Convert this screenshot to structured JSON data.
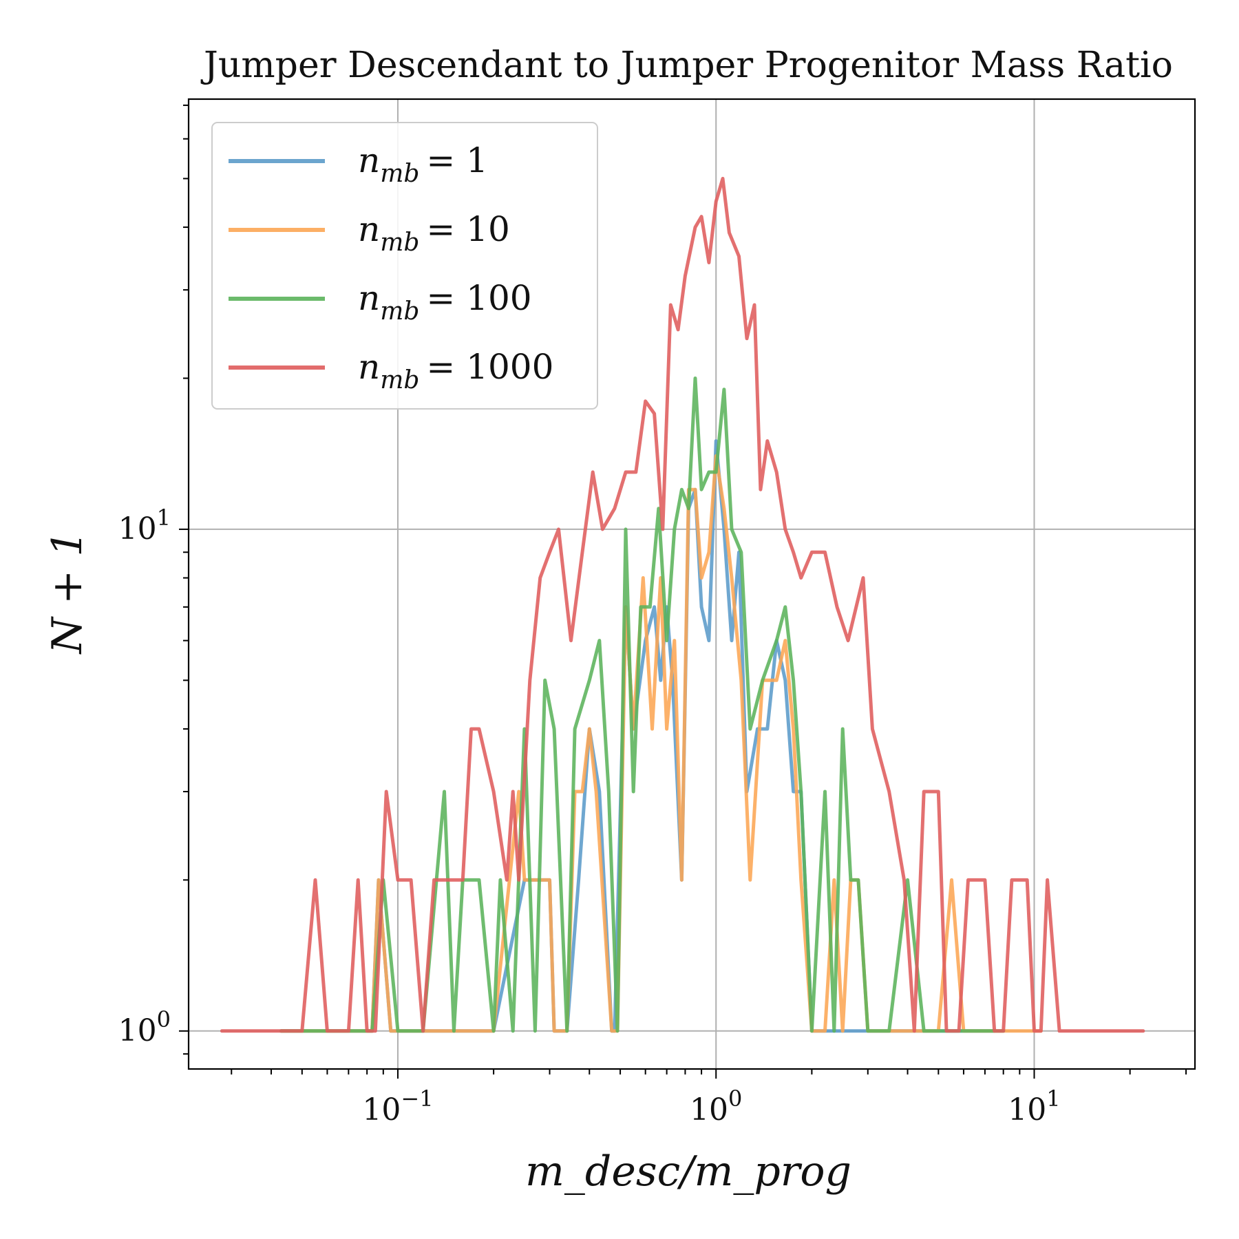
{
  "chart_data": {
    "type": "line",
    "title": "Jumper Descendant to Jumper Progenitor Mass Ratio",
    "xlabel": "m_desc/m_prog",
    "ylabel": "N + 1",
    "xscale": "log",
    "yscale": "log",
    "xlim": [
      0.022,
      32
    ],
    "ylim": [
      0.84,
      72
    ],
    "grid": true,
    "legend_position": "upper-left",
    "x_ticks": [
      {
        "value": 0.1,
        "base": "10",
        "exp": "−1"
      },
      {
        "value": 1,
        "base": "10",
        "exp": "0"
      },
      {
        "value": 10,
        "base": "10",
        "exp": "1"
      }
    ],
    "y_ticks": [
      {
        "value": 1,
        "base": "10",
        "exp": "0"
      },
      {
        "value": 10,
        "base": "10",
        "exp": "1"
      }
    ],
    "series": [
      {
        "name": "n_mb = 1",
        "label_main": "n",
        "label_sub": "mb",
        "label_value": "= 1",
        "color": "#5b9bc9",
        "points": [
          [
            0.043,
            1
          ],
          [
            0.055,
            1
          ],
          [
            0.07,
            1
          ],
          [
            0.083,
            1
          ],
          [
            0.087,
            2
          ],
          [
            0.095,
            1
          ],
          [
            0.12,
            1
          ],
          [
            0.14,
            1
          ],
          [
            0.15,
            1
          ],
          [
            0.16,
            1
          ],
          [
            0.2,
            1
          ],
          [
            0.25,
            2
          ],
          [
            0.3,
            2
          ],
          [
            0.31,
            1
          ],
          [
            0.34,
            1
          ],
          [
            0.37,
            2
          ],
          [
            0.4,
            4
          ],
          [
            0.43,
            3
          ],
          [
            0.47,
            1
          ],
          [
            0.48,
            1
          ],
          [
            0.52,
            7
          ],
          [
            0.55,
            4
          ],
          [
            0.6,
            6
          ],
          [
            0.64,
            7
          ],
          [
            0.67,
            5
          ],
          [
            0.7,
            7
          ],
          [
            0.73,
            5
          ],
          [
            0.78,
            2
          ],
          [
            0.82,
            11
          ],
          [
            0.86,
            12
          ],
          [
            0.9,
            7
          ],
          [
            0.95,
            6
          ],
          [
            1.0,
            15
          ],
          [
            1.06,
            10
          ],
          [
            1.12,
            6
          ],
          [
            1.18,
            9
          ],
          [
            1.25,
            3
          ],
          [
            1.35,
            4
          ],
          [
            1.45,
            4
          ],
          [
            1.55,
            6
          ],
          [
            1.65,
            5
          ],
          [
            1.75,
            3
          ],
          [
            1.85,
            3
          ],
          [
            2.0,
            1
          ],
          [
            2.2,
            1
          ],
          [
            2.5,
            1
          ],
          [
            2.8,
            1
          ],
          [
            3.2,
            1
          ],
          [
            4.0,
            1
          ],
          [
            5.0,
            1
          ],
          [
            6.0,
            1
          ],
          [
            7.5,
            1
          ]
        ]
      },
      {
        "name": "n_mb = 10",
        "label_main": "n",
        "label_sub": "mb",
        "label_value": "= 10",
        "color": "#fca654",
        "points": [
          [
            0.043,
            1
          ],
          [
            0.055,
            1
          ],
          [
            0.07,
            1
          ],
          [
            0.083,
            1
          ],
          [
            0.087,
            2
          ],
          [
            0.095,
            1
          ],
          [
            0.12,
            1
          ],
          [
            0.14,
            1
          ],
          [
            0.15,
            1
          ],
          [
            0.16,
            1
          ],
          [
            0.2,
            1
          ],
          [
            0.24,
            3
          ],
          [
            0.25,
            2
          ],
          [
            0.3,
            2
          ],
          [
            0.31,
            1
          ],
          [
            0.34,
            1
          ],
          [
            0.36,
            3
          ],
          [
            0.38,
            3
          ],
          [
            0.4,
            4
          ],
          [
            0.42,
            3
          ],
          [
            0.47,
            1
          ],
          [
            0.49,
            1
          ],
          [
            0.52,
            7
          ],
          [
            0.55,
            4
          ],
          [
            0.59,
            8
          ],
          [
            0.63,
            4
          ],
          [
            0.67,
            8
          ],
          [
            0.7,
            4
          ],
          [
            0.74,
            6
          ],
          [
            0.78,
            2
          ],
          [
            0.82,
            12
          ],
          [
            0.86,
            12
          ],
          [
            0.9,
            8
          ],
          [
            0.95,
            9
          ],
          [
            1.0,
            14
          ],
          [
            1.06,
            11
          ],
          [
            1.12,
            8
          ],
          [
            1.2,
            5
          ],
          [
            1.28,
            2
          ],
          [
            1.4,
            5
          ],
          [
            1.55,
            5
          ],
          [
            1.65,
            6
          ],
          [
            1.75,
            4
          ],
          [
            1.85,
            2
          ],
          [
            2.0,
            1
          ],
          [
            2.2,
            1
          ],
          [
            2.35,
            2
          ],
          [
            2.5,
            1
          ],
          [
            2.65,
            2
          ],
          [
            2.8,
            2
          ],
          [
            3.0,
            1
          ],
          [
            4.0,
            1
          ],
          [
            5.0,
            1
          ],
          [
            5.5,
            2
          ],
          [
            6.0,
            1
          ],
          [
            8.0,
            1
          ],
          [
            10.5,
            1
          ]
        ]
      },
      {
        "name": "n_mb = 100",
        "label_main": "n",
        "label_sub": "mb",
        "label_value": "= 100",
        "color": "#5bb35b",
        "points": [
          [
            0.043,
            1
          ],
          [
            0.055,
            1
          ],
          [
            0.07,
            1
          ],
          [
            0.083,
            1
          ],
          [
            0.09,
            2
          ],
          [
            0.1,
            1
          ],
          [
            0.12,
            1
          ],
          [
            0.14,
            3
          ],
          [
            0.15,
            1
          ],
          [
            0.16,
            2
          ],
          [
            0.18,
            2
          ],
          [
            0.2,
            1
          ],
          [
            0.21,
            2
          ],
          [
            0.23,
            1
          ],
          [
            0.25,
            4
          ],
          [
            0.27,
            1
          ],
          [
            0.29,
            5
          ],
          [
            0.31,
            4
          ],
          [
            0.34,
            1
          ],
          [
            0.36,
            4
          ],
          [
            0.4,
            5
          ],
          [
            0.43,
            6
          ],
          [
            0.46,
            3
          ],
          [
            0.49,
            1
          ],
          [
            0.52,
            10
          ],
          [
            0.55,
            3
          ],
          [
            0.58,
            7
          ],
          [
            0.62,
            7
          ],
          [
            0.66,
            11
          ],
          [
            0.7,
            6
          ],
          [
            0.74,
            10
          ],
          [
            0.78,
            12
          ],
          [
            0.82,
            11
          ],
          [
            0.86,
            20
          ],
          [
            0.9,
            12
          ],
          [
            0.95,
            13
          ],
          [
            1.0,
            13
          ],
          [
            1.06,
            19
          ],
          [
            1.12,
            10
          ],
          [
            1.2,
            9
          ],
          [
            1.28,
            4
          ],
          [
            1.4,
            5
          ],
          [
            1.55,
            6
          ],
          [
            1.65,
            7
          ],
          [
            1.75,
            5
          ],
          [
            1.85,
            3
          ],
          [
            2.0,
            1
          ],
          [
            2.2,
            3
          ],
          [
            2.35,
            1
          ],
          [
            2.5,
            4
          ],
          [
            2.65,
            2
          ],
          [
            2.8,
            2
          ],
          [
            3.0,
            1
          ],
          [
            3.5,
            1
          ],
          [
            4.0,
            2
          ],
          [
            4.5,
            1
          ],
          [
            6.0,
            1
          ],
          [
            8.0,
            1
          ]
        ]
      },
      {
        "name": "n_mb = 1000",
        "label_main": "n",
        "label_sub": "mb",
        "label_value": "= 1000",
        "color": "#df5c5c",
        "points": [
          [
            0.028,
            1
          ],
          [
            0.045,
            1
          ],
          [
            0.05,
            1
          ],
          [
            0.055,
            2
          ],
          [
            0.06,
            1
          ],
          [
            0.07,
            1
          ],
          [
            0.075,
            2
          ],
          [
            0.08,
            1
          ],
          [
            0.085,
            1
          ],
          [
            0.092,
            3
          ],
          [
            0.1,
            2
          ],
          [
            0.11,
            2
          ],
          [
            0.12,
            1
          ],
          [
            0.13,
            2
          ],
          [
            0.14,
            2
          ],
          [
            0.15,
            2
          ],
          [
            0.16,
            2
          ],
          [
            0.17,
            4
          ],
          [
            0.18,
            4
          ],
          [
            0.2,
            3
          ],
          [
            0.22,
            2
          ],
          [
            0.23,
            3
          ],
          [
            0.24,
            2
          ],
          [
            0.26,
            5
          ],
          [
            0.28,
            8
          ],
          [
            0.3,
            9
          ],
          [
            0.32,
            10
          ],
          [
            0.35,
            6
          ],
          [
            0.38,
            9
          ],
          [
            0.41,
            13
          ],
          [
            0.44,
            10
          ],
          [
            0.48,
            11
          ],
          [
            0.52,
            13
          ],
          [
            0.56,
            13
          ],
          [
            0.6,
            18
          ],
          [
            0.64,
            17
          ],
          [
            0.68,
            10
          ],
          [
            0.72,
            28
          ],
          [
            0.76,
            25
          ],
          [
            0.8,
            32
          ],
          [
            0.86,
            40
          ],
          [
            0.9,
            42
          ],
          [
            0.95,
            34
          ],
          [
            1.0,
            45
          ],
          [
            1.05,
            50
          ],
          [
            1.1,
            39
          ],
          [
            1.18,
            35
          ],
          [
            1.25,
            24
          ],
          [
            1.32,
            28
          ],
          [
            1.38,
            12
          ],
          [
            1.45,
            15
          ],
          [
            1.55,
            13
          ],
          [
            1.65,
            10
          ],
          [
            1.75,
            9
          ],
          [
            1.85,
            8
          ],
          [
            2.0,
            9
          ],
          [
            2.2,
            9
          ],
          [
            2.4,
            7
          ],
          [
            2.6,
            6
          ],
          [
            2.9,
            8
          ],
          [
            3.1,
            4
          ],
          [
            3.5,
            3
          ],
          [
            3.9,
            2
          ],
          [
            4.2,
            1
          ],
          [
            4.5,
            3
          ],
          [
            5.0,
            3
          ],
          [
            5.3,
            1
          ],
          [
            5.8,
            1
          ],
          [
            6.2,
            2
          ],
          [
            7.0,
            2
          ],
          [
            7.5,
            1
          ],
          [
            8.0,
            1
          ],
          [
            8.5,
            2
          ],
          [
            9.5,
            2
          ],
          [
            10,
            1
          ],
          [
            10.5,
            1
          ],
          [
            11,
            2
          ],
          [
            12,
            1
          ],
          [
            22,
            1
          ]
        ]
      }
    ]
  }
}
